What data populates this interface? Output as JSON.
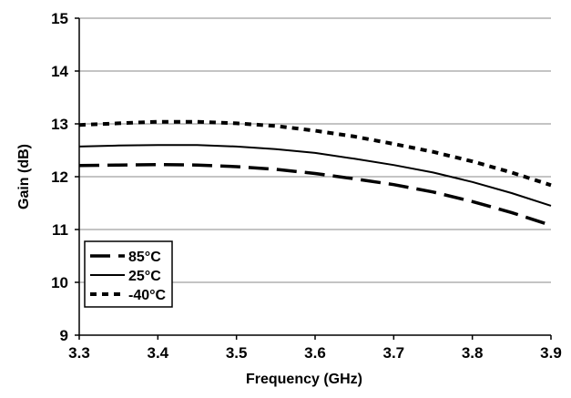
{
  "chart_data": {
    "type": "line",
    "title": "",
    "xlabel": "Frequency (GHz)",
    "ylabel": "Gain (dB)",
    "xlim": [
      3.3,
      3.9
    ],
    "ylim": [
      9,
      15
    ],
    "x_ticks": [
      "3.3",
      "3.4",
      "3.5",
      "3.6",
      "3.7",
      "3.8",
      "3.9"
    ],
    "y_ticks": [
      "9",
      "10",
      "11",
      "12",
      "13",
      "14",
      "15"
    ],
    "grid": "horizontal",
    "legend": "bottom-left",
    "series": [
      {
        "name": "85°C",
        "style": "dashed-long",
        "color": "#000000",
        "x": [
          3.3,
          3.35,
          3.4,
          3.45,
          3.5,
          3.55,
          3.6,
          3.65,
          3.7,
          3.75,
          3.8,
          3.85,
          3.9
        ],
        "y": [
          12.21,
          12.22,
          12.23,
          12.22,
          12.19,
          12.14,
          12.06,
          11.96,
          11.85,
          11.71,
          11.53,
          11.32,
          11.08
        ]
      },
      {
        "name": "25°C",
        "style": "solid",
        "color": "#000000",
        "x": [
          3.3,
          3.35,
          3.4,
          3.45,
          3.5,
          3.55,
          3.6,
          3.65,
          3.7,
          3.75,
          3.8,
          3.85,
          3.9
        ],
        "y": [
          12.57,
          12.59,
          12.6,
          12.6,
          12.57,
          12.52,
          12.45,
          12.34,
          12.22,
          12.08,
          11.9,
          11.69,
          11.45
        ]
      },
      {
        "name": "-40°C",
        "style": "dotted",
        "color": "#000000",
        "x": [
          3.3,
          3.35,
          3.4,
          3.45,
          3.5,
          3.55,
          3.6,
          3.65,
          3.7,
          3.75,
          3.8,
          3.85,
          3.9
        ],
        "y": [
          12.98,
          13.01,
          13.04,
          13.04,
          13.01,
          12.96,
          12.87,
          12.76,
          12.62,
          12.47,
          12.29,
          12.08,
          11.84
        ]
      }
    ]
  }
}
